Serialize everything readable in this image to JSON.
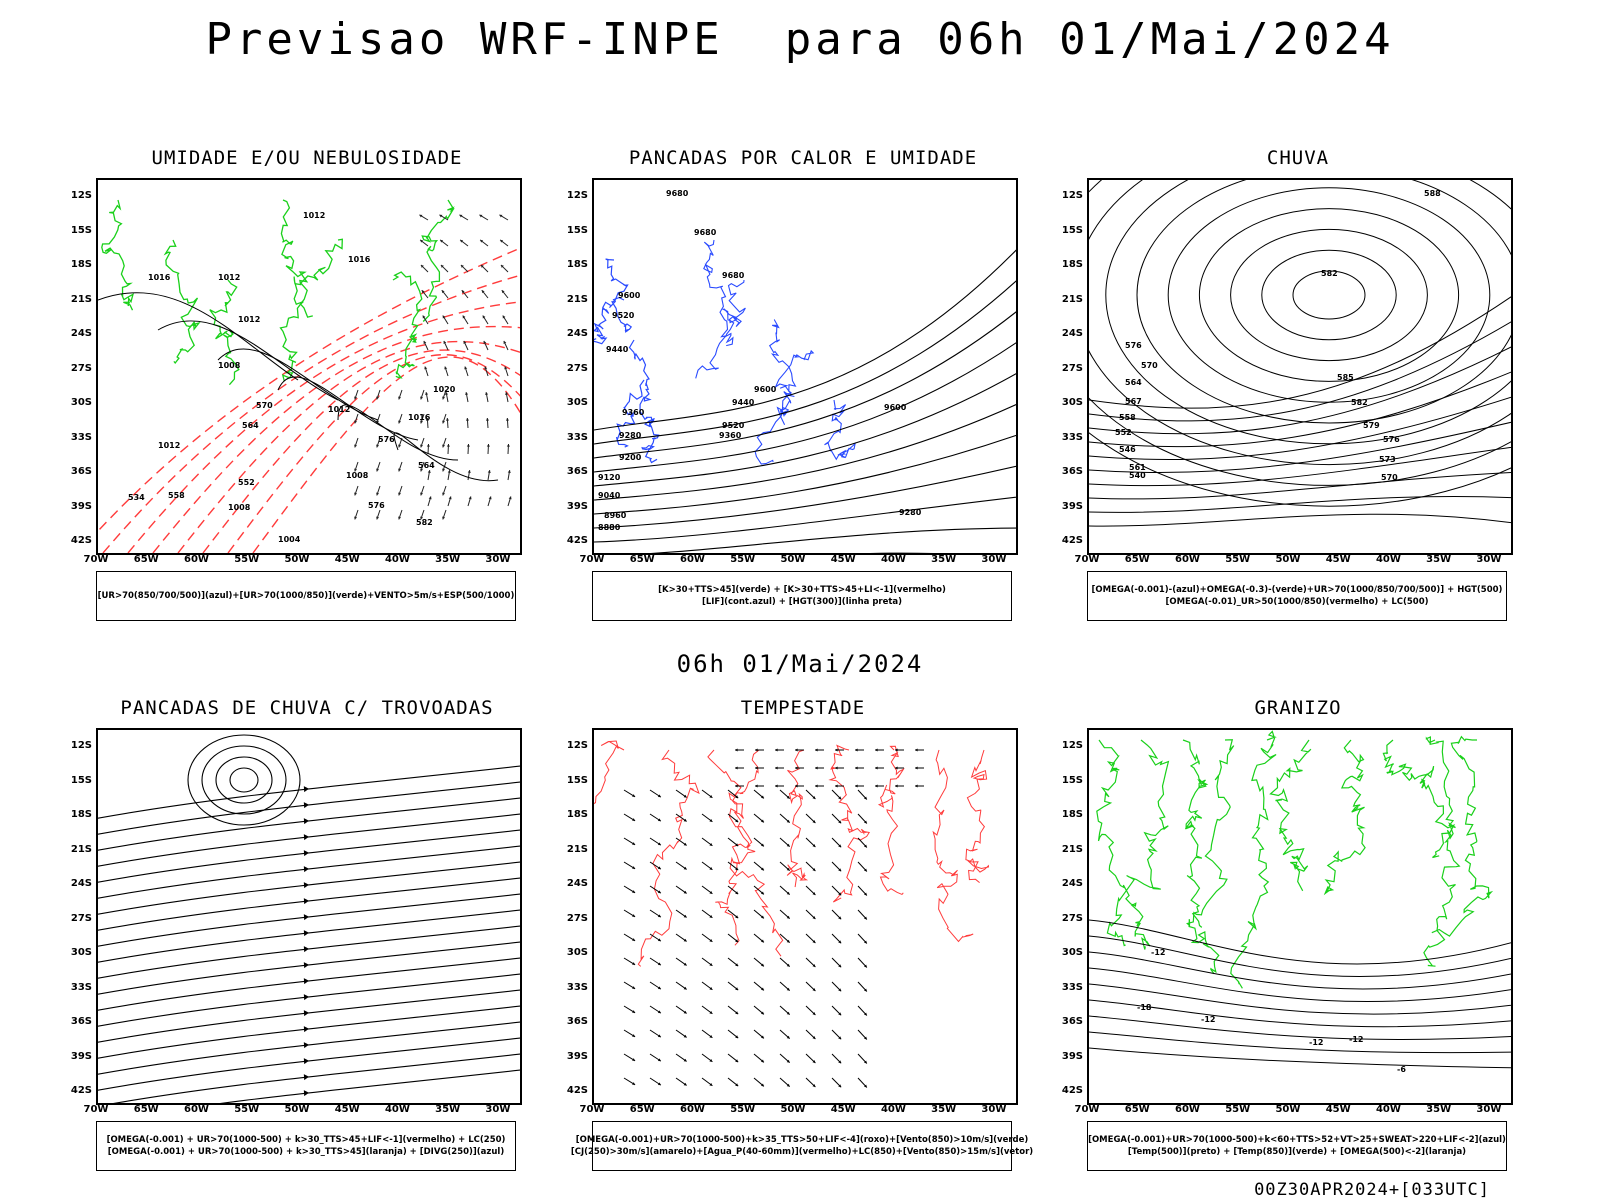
{
  "header": {
    "title": "Previsao WRF-INPE  para 06h 01/Mai/2024"
  },
  "middle": {
    "title": "06h 01/Mai/2024"
  },
  "footer": {
    "run": "00Z30APR2024+[033UTC]"
  },
  "lat_labels": [
    "12S",
    "15S",
    "18S",
    "21S",
    "24S",
    "27S",
    "30S",
    "33S",
    "36S",
    "39S",
    "42S"
  ],
  "lon_labels": [
    "70W",
    "65W",
    "60W",
    "55W",
    "50W",
    "45W",
    "40W",
    "35W",
    "30W"
  ],
  "colors": {
    "red": "#ff3b3b",
    "green": "#1ad01a",
    "blue": "#2a4bff",
    "lavender": "#aaaaf5",
    "darkteal": "#2c4a46",
    "yellow": "#e6dc3a",
    "orange": "#e88a2a",
    "black": "#000000"
  },
  "panels": [
    {
      "title": "UMIDADE E/OU NEBULOSIDADE",
      "legend": [
        "[UR>70(850/700/500)](azul)+[UR>70(1000/850)](verde)+VENTO>5m/s+ESP(500/1000)"
      ]
    },
    {
      "title": "PANCADAS POR CALOR E UMIDADE",
      "legend": [
        "[K>30+TTS>45](verde) + [K>30+TTS>45+LI<-1](vermelho)",
        "[LIF](cont.azul) + [HGT(300)](linha preta)"
      ]
    },
    {
      "title": "CHUVA",
      "legend": [
        "[OMEGA(-0.001)-(azul)+OMEGA(-0.3)-(verde)+UR>70(1000/850/700/500)] + HGT(500)",
        "[OMEGA(-0.01)_UR>50(1000/850)(vermelho) + LC(500)"
      ]
    },
    {
      "title": "PANCADAS DE CHUVA C/ TROVOADAS",
      "legend": [
        "[OMEGA(-0.001) + UR>70(1000-500) + k>30_TTS>45+LIF<-1](vermelho) + LC(250)",
        "[OMEGA(-0.001) + UR>70(1000-500) + k>30_TTS>45](laranja) + [DIVG(250)](azul)"
      ]
    },
    {
      "title": "TEMPESTADE",
      "legend": [
        "[OMEGA(-0.001)+UR>70(1000-500)+k>35_TTS>50+LIF<-4](roxo)+[Vento(850)>10m/s](verde)",
        "[CJ(250)>30m/s](amarelo)+[Agua_P(40-60mm)](vermelho)+LC(850)+[Vento(850)>15m/s](vetor)"
      ]
    },
    {
      "title": "GRANIZO",
      "legend": [
        "[OMEGA(-0.001)+UR>70(1000-500)+k<60+TTS>52+VT>25+SWEAT>220+LIF<-2](azul)",
        "[Temp(500)](preto) + [Temp(850)](verde) + [OMEGA(500)<-2](laranja)"
      ]
    }
  ],
  "contour_labels": {
    "p1": [
      "1012",
      "1012",
      "1016",
      "1016",
      "1012",
      "1008",
      "1012",
      "1016",
      "1020",
      "1008",
      "1012",
      "1008",
      "1004",
      "570",
      "564",
      "576",
      "564",
      "582",
      "576",
      "552",
      "534",
      "558"
    ],
    "p2": [
      "9680",
      "9680",
      "9680",
      "9600",
      "9520",
      "9440",
      "9360",
      "9280",
      "9200",
      "9120",
      "9040",
      "8960",
      "8880",
      "9600",
      "9520",
      "9440",
      "9360",
      "9280",
      "9600"
    ],
    "p3": [
      "588",
      "582",
      "576",
      "570",
      "564",
      "558",
      "552",
      "546",
      "540",
      "585",
      "582",
      "579",
      "576",
      "573",
      "570",
      "567",
      "561"
    ],
    "p6": [
      "-12",
      "-12",
      "-12",
      "-18",
      "-12",
      "-6"
    ]
  }
}
